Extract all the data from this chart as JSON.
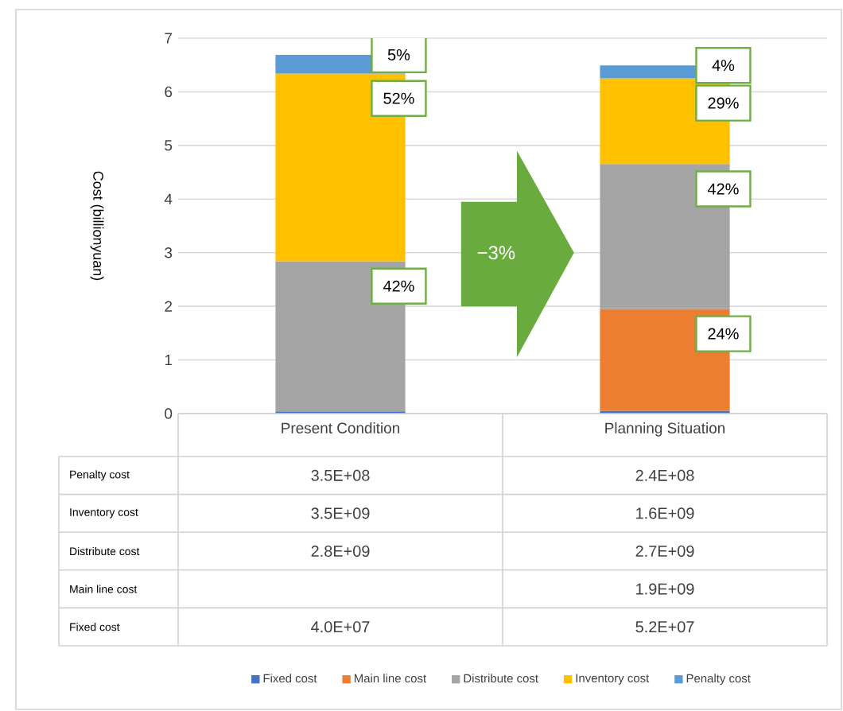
{
  "chart_data": {
    "type": "bar",
    "stacked": true,
    "categories": [
      "Present Condition",
      "Planning Situation"
    ],
    "series": [
      {
        "name": "Fixed cost",
        "color": "#4472c4",
        "values": [
          0.04,
          0.052
        ]
      },
      {
        "name": "Main line cost",
        "color": "#ed7d31",
        "values": [
          null,
          1.9
        ]
      },
      {
        "name": "Distribute cost",
        "color": "#a5a5a5",
        "values": [
          2.8,
          2.7
        ]
      },
      {
        "name": "Inventory cost",
        "color": "#ffc000",
        "values": [
          3.5,
          1.6
        ]
      },
      {
        "name": "Penalty  cost",
        "color": "#5b9bd5",
        "values": [
          0.35,
          0.24
        ]
      }
    ],
    "ylabel": "Cost  (billionyuan)",
    "ylim": [
      0,
      7
    ],
    "yticks": [
      0,
      1,
      2,
      3,
      4,
      5,
      6,
      7
    ],
    "grid": "y",
    "legend": "bottom",
    "annotations": [
      {
        "text": "5%",
        "x": "Present Condition",
        "y": 6.69
      },
      {
        "text": "52%",
        "x": "Present Condition",
        "y": 6.34
      },
      {
        "text": "42%",
        "x": "Present Condition",
        "y": 2.84
      },
      {
        "text": "4%",
        "x": "Planning Situation",
        "y": 6.492
      },
      {
        "text": "29%",
        "x": "Planning Situation",
        "y": 6.252
      },
      {
        "text": "42%",
        "x": "Planning Situation",
        "y": 4.652
      },
      {
        "text": "24%",
        "x": "Planning Situation",
        "y": 1.952
      },
      "−3%",
      "3.5E+08",
      "2.4E+08",
      "3.5E+09",
      "1.6E+09",
      "2.8E+09",
      "2.7E+09",
      "1.9E+09",
      "4.0E+07",
      "5.2E+07"
    ]
  }
}
